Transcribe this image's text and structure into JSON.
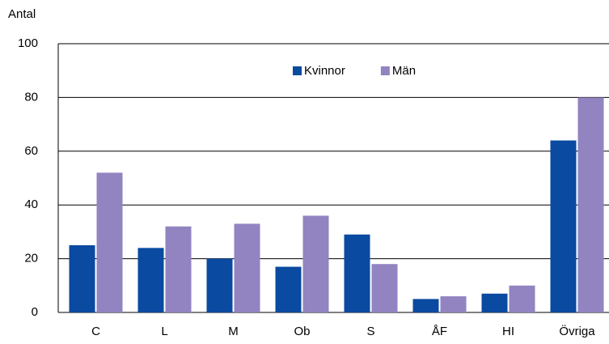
{
  "chart_data": {
    "type": "bar",
    "y_label": "Antal",
    "categories": [
      "C",
      "L",
      "M",
      "Ob",
      "S",
      "ÅF",
      "HI",
      "Övriga"
    ],
    "series": [
      {
        "name": "Kvinnor",
        "color": "#0a4aa0",
        "values": [
          25,
          24,
          20,
          17,
          29,
          5,
          7,
          64
        ]
      },
      {
        "name": "Män",
        "color": "#9283c1",
        "values": [
          52,
          32,
          33,
          36,
          18,
          6,
          10,
          80
        ]
      }
    ],
    "ylim": [
      0,
      100
    ],
    "yticks": [
      0,
      20,
      40,
      60,
      80,
      100
    ],
    "grid": true,
    "legend": "top"
  }
}
